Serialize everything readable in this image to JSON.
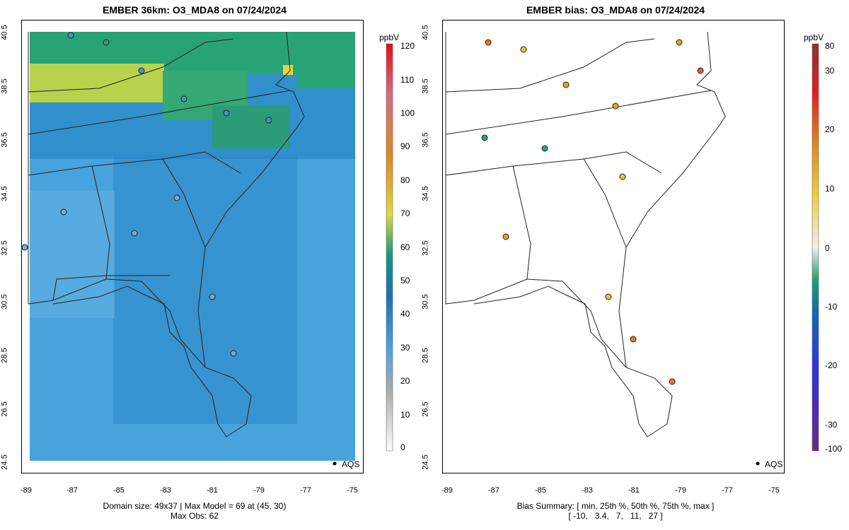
{
  "left_panel": {
    "title": "EMBER 36km: O3_MDA8 on 07/24/2024",
    "colorbar": {
      "unit": "ppbV",
      "ticks": [
        "0",
        "10",
        "20",
        "30",
        "40",
        "50",
        "60",
        "70",
        "80",
        "90",
        "100",
        "110",
        "120"
      ]
    },
    "footer": [
      "Domain size: 49x37 | Max Model = 69 at (45, 30)",
      "Max Obs: 62"
    ],
    "legend": "AQS"
  },
  "right_panel": {
    "title": "EMBER bias: O3_MDA8 on 07/24/2024",
    "colorbar": {
      "unit": "ppbV",
      "ticks": [
        "80",
        "30",
        "20",
        "10",
        "0",
        "-10",
        "-20",
        "-30",
        "-100"
      ]
    },
    "footer": [
      "Bias Summary: [ min, 25th %, 50th %, 75th %, max ]",
      "[ -10,   3.4,   7,   11,   27 ]"
    ],
    "legend": "AQS"
  },
  "axes": {
    "x_ticks": [
      "-89",
      "-87",
      "-85",
      "-83",
      "-81",
      "-79",
      "-77",
      "-75"
    ],
    "y_ticks": [
      "24.5",
      "26.5",
      "28.5",
      "30.5",
      "32.5",
      "34.5",
      "36.5",
      "38.5",
      "40.5"
    ]
  },
  "colors": {
    "model_background": "#3f96d2",
    "high_ozone": "#c8d84a",
    "bias_positive": "#e8a020",
    "bias_negative": "#2aa080"
  }
}
